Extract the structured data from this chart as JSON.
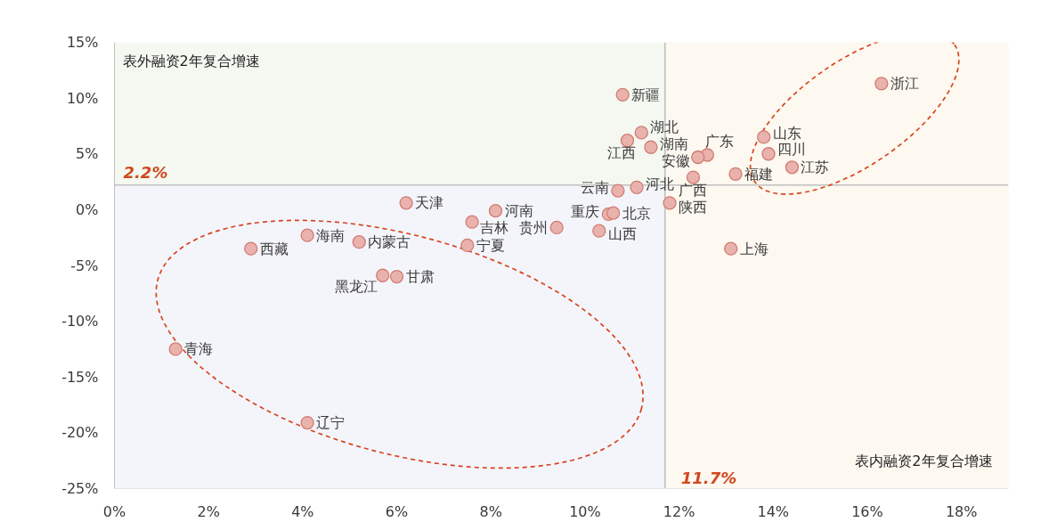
{
  "chart_data": {
    "type": "scatter",
    "xlabel": "表内融资2年复合增速",
    "ylabel": "表外融资2年复合增速",
    "xlim": [
      0,
      19
    ],
    "ylim": [
      -25,
      15
    ],
    "xticks": [
      {
        "value": 0,
        "label": "0%"
      },
      {
        "value": 2,
        "label": "2%"
      },
      {
        "value": 4,
        "label": "4%"
      },
      {
        "value": 6,
        "label": "6%"
      },
      {
        "value": 8,
        "label": "8%"
      },
      {
        "value": 10,
        "label": "10%"
      },
      {
        "value": 12,
        "label": "12%"
      },
      {
        "value": 14,
        "label": "14%"
      },
      {
        "value": 16,
        "label": "16%"
      },
      {
        "value": 18,
        "label": "18%"
      }
    ],
    "yticks": [
      {
        "value": -25,
        "label": "-25%"
      },
      {
        "value": -20,
        "label": "-20%"
      },
      {
        "value": -15,
        "label": "-15%"
      },
      {
        "value": -10,
        "label": "-10%"
      },
      {
        "value": -5,
        "label": "-5%"
      },
      {
        "value": 0,
        "label": "0%"
      },
      {
        "value": 5,
        "label": "5%"
      },
      {
        "value": 10,
        "label": "10%"
      },
      {
        "value": 15,
        "label": "15%"
      }
    ],
    "marker": "circle",
    "bands": [
      {
        "axis": "y",
        "from": 2.2,
        "to": 15,
        "color": "#f4f8f0"
      },
      {
        "axis": "y",
        "from": -25,
        "to": 2.2,
        "color": "#f4f5fb"
      },
      {
        "axis": "x",
        "from": 11.7,
        "to": 19,
        "color": "#fdf8f0"
      }
    ],
    "ref_lines": [
      {
        "axis": "y",
        "value": 2.2,
        "label": "2.2%",
        "color": "#c0c0c0"
      },
      {
        "axis": "x",
        "value": 11.7,
        "label": "11.7%",
        "color": "#c0c0c0"
      }
    ],
    "series": [
      {
        "name": "新疆",
        "color": "#e9b2ad",
        "x": [
          10.8
        ],
        "values": [
          10.3
        ]
      },
      {
        "name": "湖北",
        "color": "#e9b2ad",
        "x": [
          11.2
        ],
        "values": [
          6.9
        ]
      },
      {
        "name": "江西",
        "color": "#e9b2ad",
        "x": [
          10.9
        ],
        "values": [
          6.2
        ]
      },
      {
        "name": "湖南",
        "color": "#e9b2ad",
        "x": [
          11.4
        ],
        "values": [
          5.6
        ]
      },
      {
        "name": "广东",
        "color": "#e9b2ad",
        "x": [
          12.6
        ],
        "values": [
          4.9
        ]
      },
      {
        "name": "安徽",
        "color": "#e9b2ad",
        "x": [
          12.4
        ],
        "values": [
          4.7
        ]
      },
      {
        "name": "广西",
        "color": "#e9b2ad",
        "x": [
          12.3
        ],
        "values": [
          2.9
        ]
      },
      {
        "name": "福建",
        "color": "#e9b2ad",
        "x": [
          13.2
        ],
        "values": [
          3.2
        ]
      },
      {
        "name": "河北",
        "color": "#e9b2ad",
        "x": [
          11.1
        ],
        "values": [
          2.0
        ]
      },
      {
        "name": "云南",
        "color": "#e9b2ad",
        "x": [
          10.7
        ],
        "values": [
          1.7
        ]
      },
      {
        "name": "陕西",
        "color": "#e9b2ad",
        "x": [
          11.8
        ],
        "values": [
          0.6
        ]
      },
      {
        "name": "重庆",
        "color": "#e9b2ad",
        "x": [
          10.5
        ],
        "values": [
          -0.4
        ]
      },
      {
        "name": "北京",
        "color": "#e9b2ad",
        "x": [
          10.6
        ],
        "values": [
          -0.3
        ]
      },
      {
        "name": "山西",
        "color": "#e9b2ad",
        "x": [
          10.3
        ],
        "values": [
          -1.9
        ]
      },
      {
        "name": "贵州",
        "color": "#e9b2ad",
        "x": [
          9.4
        ],
        "values": [
          -1.6
        ]
      },
      {
        "name": "吉林",
        "color": "#e9b2ad",
        "x": [
          7.6
        ],
        "values": [
          -1.1
        ]
      },
      {
        "name": "河南",
        "color": "#e9b2ad",
        "x": [
          8.1
        ],
        "values": [
          -0.1
        ]
      },
      {
        "name": "宁夏",
        "color": "#e9b2ad",
        "x": [
          7.5
        ],
        "values": [
          -3.2
        ]
      },
      {
        "name": "天津",
        "color": "#e9b2ad",
        "x": [
          6.2
        ],
        "values": [
          0.6
        ]
      },
      {
        "name": "内蒙古",
        "color": "#e9b2ad",
        "x": [
          5.2
        ],
        "values": [
          -2.9
        ]
      },
      {
        "name": "海南",
        "color": "#e9b2ad",
        "x": [
          4.1
        ],
        "values": [
          -2.3
        ]
      },
      {
        "name": "西藏",
        "color": "#e9b2ad",
        "x": [
          2.9
        ],
        "values": [
          -3.5
        ]
      },
      {
        "name": "黑龙江",
        "color": "#e9b2ad",
        "x": [
          5.7
        ],
        "values": [
          -5.9
        ]
      },
      {
        "name": "甘肃",
        "color": "#e9b2ad",
        "x": [
          6.0
        ],
        "values": [
          -6.0
        ]
      },
      {
        "name": "青海",
        "color": "#e9b2ad",
        "x": [
          1.3
        ],
        "values": [
          -12.5
        ]
      },
      {
        "name": "辽宁",
        "color": "#e9b2ad",
        "x": [
          4.1
        ],
        "values": [
          -19.1
        ]
      },
      {
        "name": "上海",
        "color": "#e9b2ad",
        "x": [
          13.1
        ],
        "values": [
          -3.5
        ]
      },
      {
        "name": "山东",
        "color": "#e9b2ad",
        "x": [
          13.8
        ],
        "values": [
          6.5
        ]
      },
      {
        "name": "四川",
        "color": "#e9b2ad",
        "x": [
          13.9
        ],
        "values": [
          5.0
        ]
      },
      {
        "name": "江苏",
        "color": "#e9b2ad",
        "x": [
          14.4
        ],
        "values": [
          3.8
        ]
      },
      {
        "name": "浙江",
        "color": "#e9b2ad",
        "x": [
          16.3
        ],
        "values": [
          11.3
        ]
      }
    ]
  }
}
